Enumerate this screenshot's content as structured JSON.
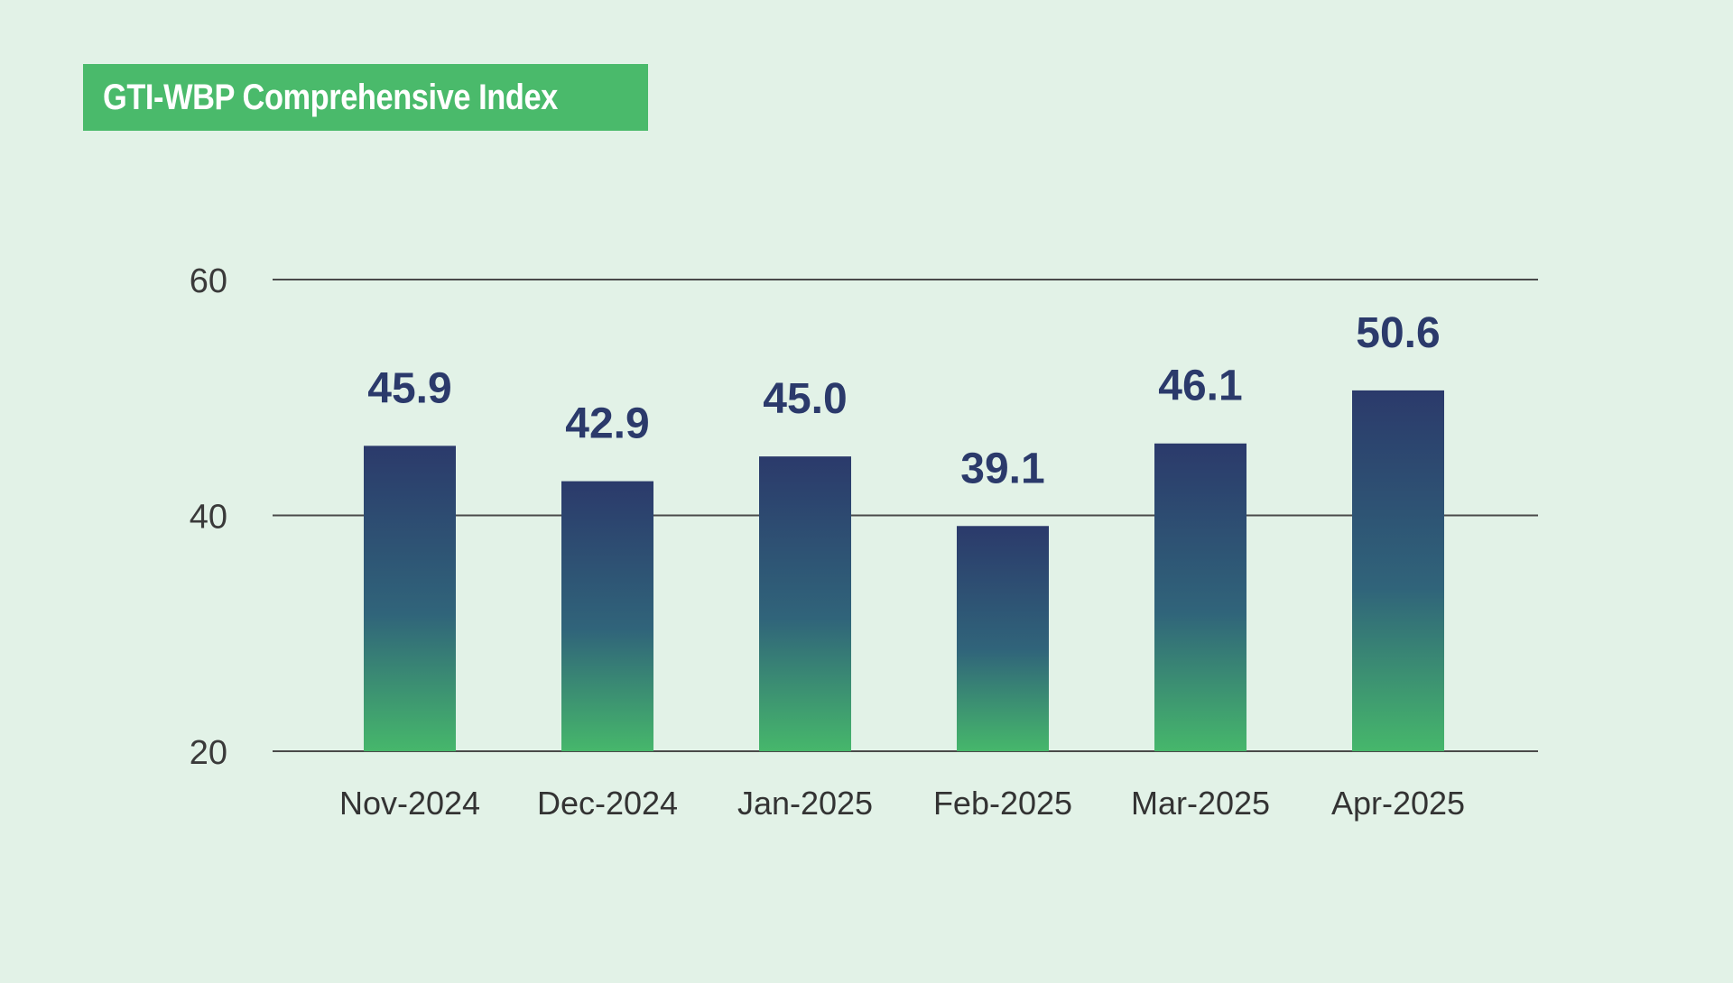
{
  "chart_data": {
    "type": "bar",
    "title": "GTI-WBP Comprehensive Index",
    "categories": [
      "Nov-2024",
      "Dec-2024",
      "Jan-2025",
      "Feb-2025",
      "Mar-2025",
      "Apr-2025"
    ],
    "values": [
      45.9,
      42.9,
      45.0,
      39.1,
      46.1,
      50.6
    ],
    "value_labels": [
      "45.9",
      "42.9",
      "45.0",
      "39.1",
      "46.1",
      "50.6"
    ],
    "ylim": [
      20,
      60
    ],
    "yticks": [
      20,
      40,
      60
    ],
    "xlabel": "",
    "ylabel": "",
    "grid": true,
    "colors": {
      "bar_top": "#2b3a6b",
      "bar_mid": "#30647a",
      "bar_bottom": "#46b76b",
      "title_bg": "#4aba6b",
      "background": "#e2f2e7",
      "data_label": "#2b3a6b",
      "gridline": "#4a4a4a"
    }
  }
}
